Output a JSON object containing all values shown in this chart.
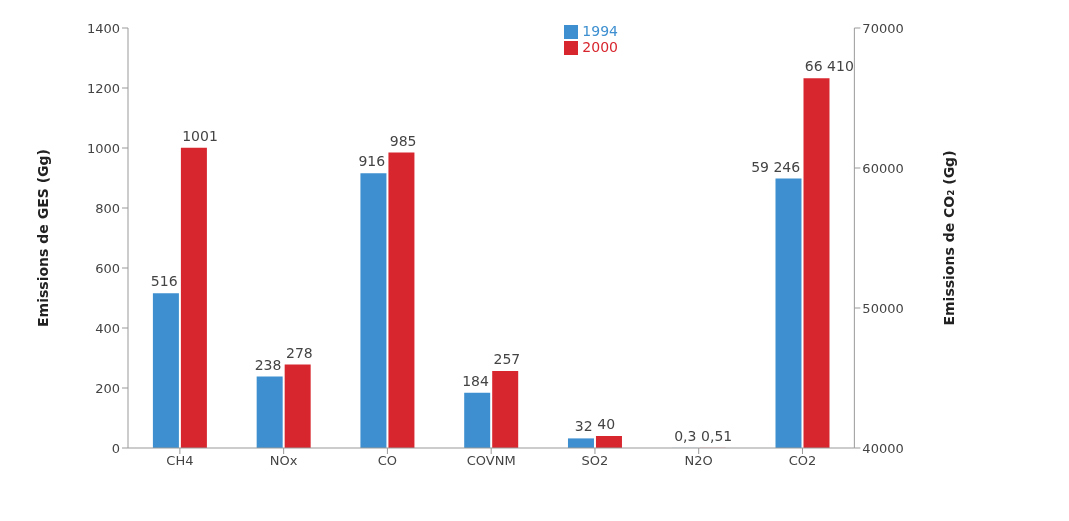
{
  "chart_data": {
    "type": "bar",
    "categories": [
      "CH4",
      "NOx",
      "CO",
      "COVNM",
      "SO2",
      "N2O",
      "CO2"
    ],
    "series": [
      {
        "name": "1994",
        "color": "#3d8fd0",
        "values": [
          516,
          238,
          916,
          184,
          32,
          0.3,
          null
        ],
        "value_labels": [
          "516",
          "238",
          "916",
          "184",
          "32",
          "0,3",
          null
        ]
      },
      {
        "name": "2000",
        "color": "#d8262e",
        "values": [
          1001,
          278,
          985,
          257,
          40,
          0.51,
          null
        ],
        "value_labels": [
          "1001",
          "278",
          "985",
          "257",
          "40",
          "0,51",
          null
        ]
      },
      {
        "color": "#3d8fd0",
        "axis": "y2",
        "values": [
          null,
          null,
          null,
          null,
          null,
          null,
          59246
        ],
        "value_labels": [
          null,
          null,
          null,
          null,
          null,
          null,
          "59 246"
        ]
      },
      {
        "color": "#d8262e",
        "axis": "y2",
        "values": [
          null,
          null,
          null,
          null,
          null,
          null,
          66410
        ],
        "value_labels": [
          null,
          null,
          null,
          null,
          null,
          null,
          "66 410"
        ]
      }
    ],
    "ylabel": "Emissions de GES (Gg)",
    "y2label": "Emissions de CO₂ (Gg)",
    "ylim": [
      0,
      1400
    ],
    "yticks": [
      0,
      200,
      400,
      600,
      800,
      1000,
      1200,
      1400
    ],
    "y2lim": [
      40000,
      70000
    ],
    "y2ticks": [
      40000,
      50000,
      60000,
      70000
    ],
    "legend": "top right"
  }
}
